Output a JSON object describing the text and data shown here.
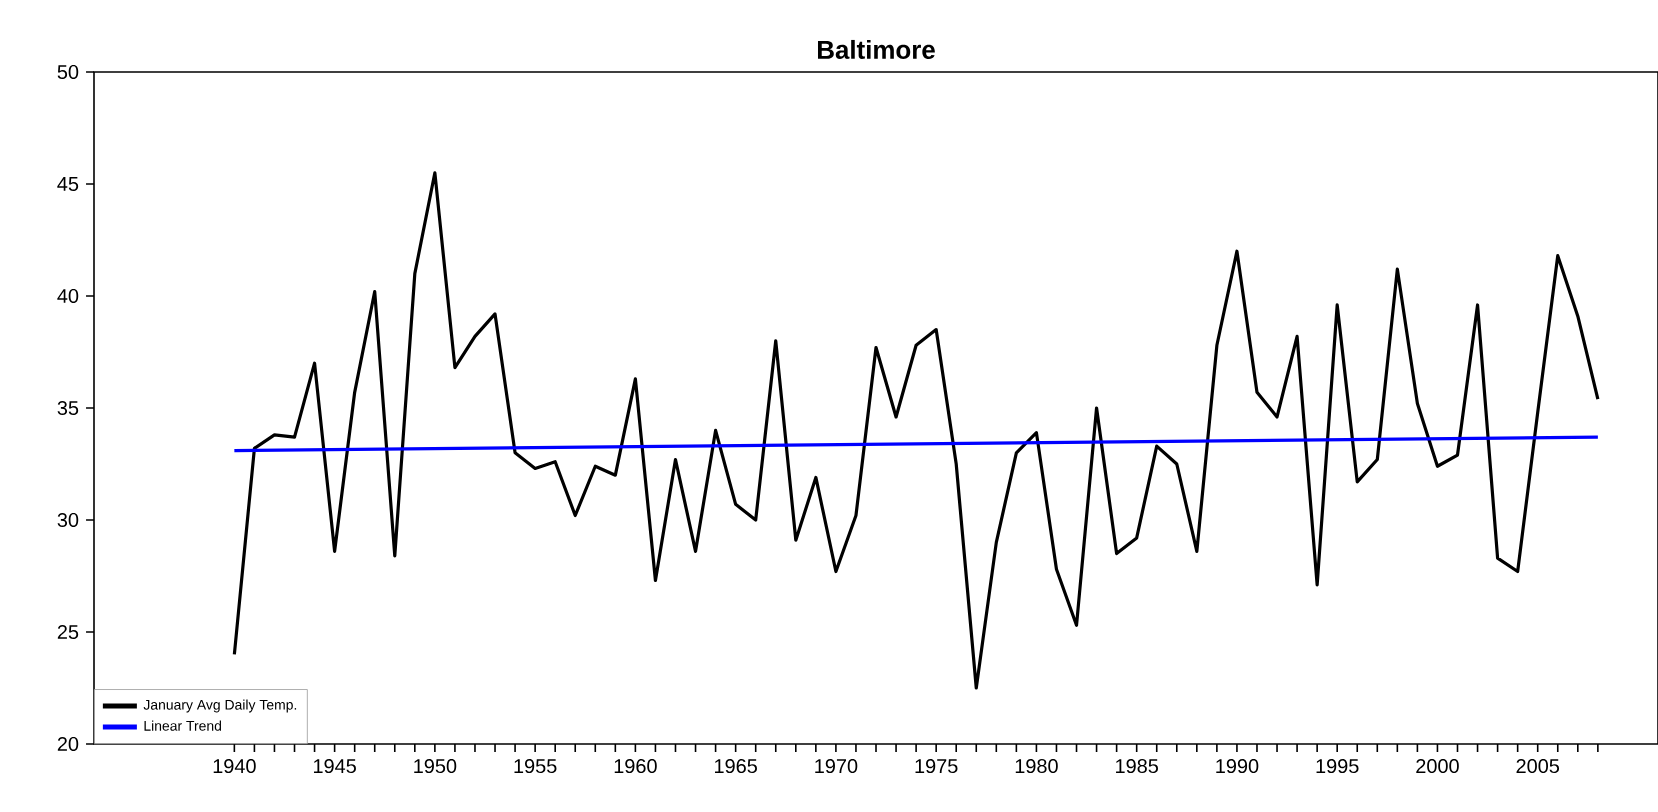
{
  "chart_data": {
    "type": "line",
    "title": "Baltimore",
    "x": [
      1940,
      1941,
      1942,
      1943,
      1944,
      1945,
      1946,
      1947,
      1948,
      1949,
      1950,
      1951,
      1952,
      1953,
      1954,
      1955,
      1956,
      1957,
      1958,
      1959,
      1960,
      1961,
      1962,
      1963,
      1964,
      1965,
      1966,
      1967,
      1968,
      1969,
      1970,
      1971,
      1972,
      1973,
      1974,
      1975,
      1976,
      1977,
      1978,
      1979,
      1980,
      1981,
      1982,
      1983,
      1984,
      1985,
      1986,
      1987,
      1988,
      1989,
      1990,
      1991,
      1992,
      1993,
      1994,
      1995,
      1996,
      1997,
      1998,
      1999,
      2000,
      2001,
      2002,
      2003,
      2004,
      2005,
      2006,
      2007,
      2008
    ],
    "series": [
      {
        "name": "January Avg Daily Temp.",
        "color": "#000000",
        "values": [
          24,
          33.2,
          33.8,
          33.7,
          37,
          28.6,
          35.7,
          40.2,
          28.4,
          41,
          45.5,
          36.8,
          38.2,
          39.2,
          33,
          32.3,
          32.6,
          30.2,
          32.4,
          32,
          36.3,
          27.3,
          32.7,
          28.6,
          34,
          30.7,
          30,
          38,
          29.1,
          31.9,
          27.7,
          30.2,
          37.7,
          34.6,
          37.8,
          38.5,
          32.5,
          22.5,
          29,
          33,
          33.9,
          27.8,
          25.3,
          35,
          28.5,
          29.2,
          33.3,
          32.5,
          28.6,
          37.8,
          42,
          35.7,
          34.6,
          38.2,
          27.1,
          39.6,
          31.7,
          32.7,
          41.2,
          35.2,
          32.4,
          32.9,
          39.6,
          28.3,
          27.7,
          34.8,
          41.8,
          39.1,
          35.4
        ]
      },
      {
        "name": "Linear Trend",
        "color": "#0000ff",
        "x": [
          1940,
          2008
        ],
        "values": [
          33.1,
          33.7
        ]
      }
    ],
    "xlim": [
      1933,
      2011
    ],
    "xticks": [
      1940,
      {
        "value": 1941,
        "label": null
      },
      {
        "value": 1942,
        "label": null
      },
      {
        "value": 1943,
        "label": null
      },
      {
        "value": 1944,
        "label": null
      },
      1945,
      {
        "value": 1946,
        "label": null
      },
      {
        "value": 1947,
        "label": null
      },
      {
        "value": 1948,
        "label": null
      },
      {
        "value": 1949,
        "label": null
      },
      1950,
      {
        "value": 1951,
        "label": null
      },
      {
        "value": 1952,
        "label": null
      },
      {
        "value": 1953,
        "label": null
      },
      {
        "value": 1954,
        "label": null
      },
      1955,
      {
        "value": 1956,
        "label": null
      },
      {
        "value": 1957,
        "label": null
      },
      {
        "value": 1958,
        "label": null
      },
      {
        "value": 1959,
        "label": null
      },
      1960,
      {
        "value": 1961,
        "label": null
      },
      {
        "value": 1962,
        "label": null
      },
      {
        "value": 1963,
        "label": null
      },
      {
        "value": 1964,
        "label": null
      },
      1965,
      {
        "value": 1966,
        "label": null
      },
      {
        "value": 1967,
        "label": null
      },
      {
        "value": 1968,
        "label": null
      },
      {
        "value": 1969,
        "label": null
      },
      1970,
      {
        "value": 1971,
        "label": null
      },
      {
        "value": 1972,
        "label": null
      },
      {
        "value": 1973,
        "label": null
      },
      {
        "value": 1974,
        "label": null
      },
      1975,
      {
        "value": 1976,
        "label": null
      },
      {
        "value": 1977,
        "label": null
      },
      {
        "value": 1978,
        "label": null
      },
      {
        "value": 1979,
        "label": null
      },
      1980,
      {
        "value": 1981,
        "label": null
      },
      {
        "value": 1982,
        "label": null
      },
      {
        "value": 1983,
        "label": null
      },
      {
        "value": 1984,
        "label": null
      },
      1985,
      {
        "value": 1986,
        "label": null
      },
      {
        "value": 1987,
        "label": null
      },
      {
        "value": 1988,
        "label": null
      },
      {
        "value": 1989,
        "label": null
      },
      1990,
      {
        "value": 1991,
        "label": null
      },
      {
        "value": 1992,
        "label": null
      },
      {
        "value": 1993,
        "label": null
      },
      {
        "value": 1994,
        "label": null
      },
      1995,
      {
        "value": 1996,
        "label": null
      },
      {
        "value": 1997,
        "label": null
      },
      {
        "value": 1998,
        "label": null
      },
      {
        "value": 1999,
        "label": null
      },
      2000,
      {
        "value": 2001,
        "label": null
      },
      {
        "value": 2002,
        "label": null
      },
      {
        "value": 2003,
        "label": null
      },
      {
        "value": 2004,
        "label": null
      },
      2005,
      {
        "value": 2006,
        "label": null
      },
      {
        "value": 2007,
        "label": null
      },
      {
        "value": 2008,
        "label": null
      }
    ],
    "ylim": [
      20,
      50
    ],
    "yticks": [
      20,
      25,
      30,
      35,
      40,
      45,
      50
    ],
    "grid": false,
    "legend": "bottom left",
    "marker": "none",
    "line_style": "solid"
  }
}
